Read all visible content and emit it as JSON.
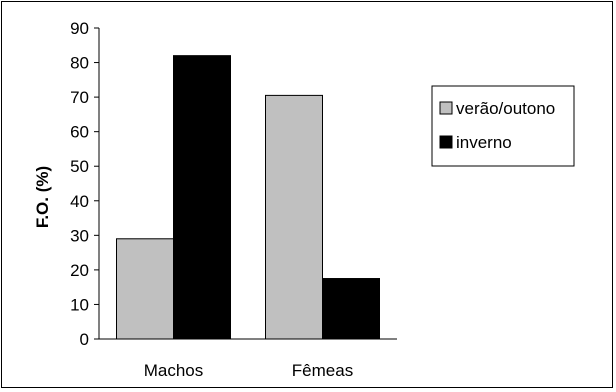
{
  "chart_data": {
    "type": "bar",
    "categories": [
      "Machos",
      "Fêmeas"
    ],
    "series": [
      {
        "name": "verão/outono",
        "values": [
          29,
          70.5
        ],
        "color": "#c0c0c0"
      },
      {
        "name": "inverno",
        "values": [
          82,
          17.5
        ],
        "color": "#000000"
      }
    ],
    "ylabel": "F.O. (%)",
    "xlabel": "",
    "ylim": [
      0,
      90
    ],
    "yticks": [
      0,
      10,
      20,
      30,
      40,
      50,
      60,
      70,
      80,
      90
    ],
    "grid": false,
    "legend": "right"
  }
}
